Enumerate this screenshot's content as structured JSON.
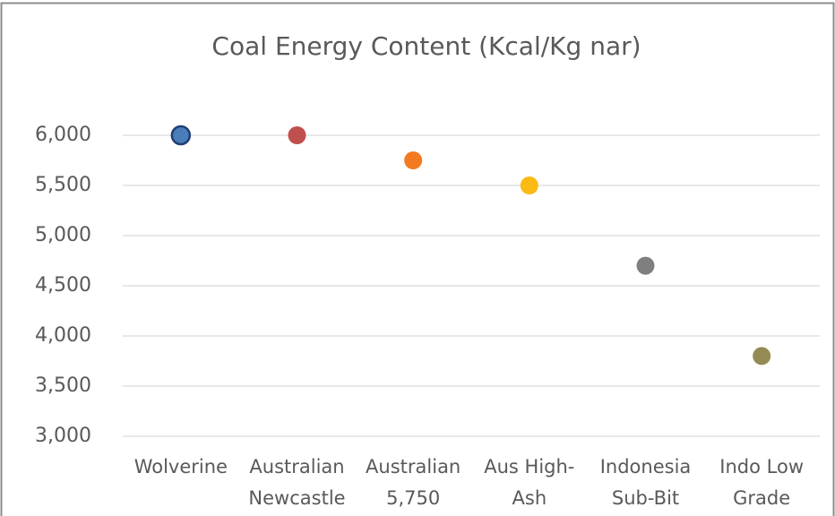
{
  "chart_data": {
    "type": "scatter",
    "title": "Coal Energy Content (Kcal/Kg nar)",
    "categories": [
      "Wolverine",
      "Australian Newcastle",
      "Australian 5,750",
      "Aus High-Ash",
      "Indonesia Sub-Bit",
      "Indo Low Grade"
    ],
    "values": [
      6000,
      6000,
      5750,
      5500,
      4700,
      3800
    ],
    "colors": [
      "#4a7ebb",
      "#c0504d",
      "#f47a20",
      "#fbb913",
      "#7f7f7f",
      "#948a54"
    ],
    "ylim": [
      3000,
      6000
    ],
    "yticks": [
      {
        "value": 3000,
        "label": "3,000"
      },
      {
        "value": 3500,
        "label": "3,500"
      },
      {
        "value": 4000,
        "label": "4,000"
      },
      {
        "value": 4500,
        "label": "4,500"
      },
      {
        "value": 5000,
        "label": "5,000"
      },
      {
        "value": 5500,
        "label": "5,500"
      },
      {
        "value": 6000,
        "label": "6,000"
      }
    ],
    "grid": true
  }
}
